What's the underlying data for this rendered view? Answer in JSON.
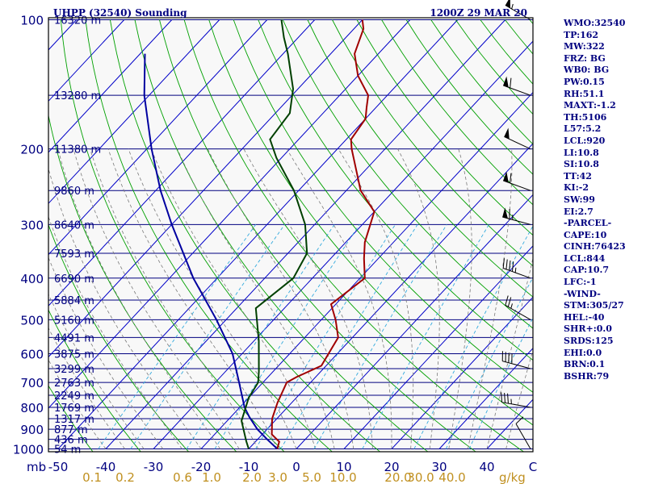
{
  "header": {
    "title": "UHPP (32540) Sounding",
    "time": "1200Z 29 MAR 20"
  },
  "colors": {
    "label_navy": "#000080",
    "isobar": "#00007f",
    "isotherm": "#0000c8",
    "dry_adiabat": "#00a000",
    "moist_adiabat": "#7a7a7a",
    "mixing_ratio": "#33aadd",
    "temperature": "#a00000",
    "dewpoint": "#004000",
    "parcel": "#0000a0",
    "tick_labels": "#c09020"
  },
  "stats": [
    {
      "label": "WMO:32540"
    },
    {
      "label": "TP:162"
    },
    {
      "label": "MW:322"
    },
    {
      "label": "FRZ: BG"
    },
    {
      "label": "WB0: BG"
    },
    {
      "label": "PW:0.15"
    },
    {
      "label": "RH:51.1"
    },
    {
      "label": "MAXT:-1.2"
    },
    {
      "label": "TH:5106"
    },
    {
      "label": "L57:5.2"
    },
    {
      "label": "LCL:920"
    },
    {
      "label": "LI:10.8"
    },
    {
      "label": "SI:10.8"
    },
    {
      "label": "TT:42"
    },
    {
      "label": "KI:-2"
    },
    {
      "label": "SW:99"
    },
    {
      "label": "EI:2.7"
    },
    {
      "label": "-PARCEL-"
    },
    {
      "label": "CAPE:10"
    },
    {
      "label": "CINH:76423"
    },
    {
      "label": "LCL:844"
    },
    {
      "label": "CAP:10.7"
    },
    {
      "label": "LFC:-1"
    },
    {
      "label": "-WIND-"
    },
    {
      "label": "STM:305/27"
    },
    {
      "label": "HEL:-40"
    },
    {
      "label": "SHR+:0.0"
    },
    {
      "label": "SRDS:125"
    },
    {
      "label": "EHI:0.0"
    },
    {
      "label": "BRN:0.1"
    },
    {
      "label": "BSHR:79"
    }
  ],
  "chart_data": {
    "type": "skew-t",
    "x_unit_label": "C",
    "y_unit_label": "mb",
    "pressure_levels": [
      100,
      200,
      300,
      400,
      500,
      600,
      700,
      800,
      900,
      1000
    ],
    "temperature_ticks": [
      -50,
      -40,
      -30,
      -20,
      -10,
      0,
      10,
      20,
      30,
      40
    ],
    "mixing_ratio_unit": "g/kg",
    "mixing_ratio_ticks": [
      "0.1",
      "0.2",
      "0.6",
      "1.0",
      "2.0",
      "3.0",
      "5.0",
      "10.0",
      "20.0",
      "30.0",
      "40.0"
    ],
    "height_labels": [
      {
        "p": 100,
        "h": "16320 m"
      },
      {
        "p": 150,
        "h": "13280 m"
      },
      {
        "p": 200,
        "h": "11380 m"
      },
      {
        "p": 250,
        "h": "9860 m"
      },
      {
        "p": 300,
        "h": "8640 m"
      },
      {
        "p": 350,
        "h": "7593 m"
      },
      {
        "p": 400,
        "h": "6690 m"
      },
      {
        "p": 450,
        "h": "5884 m"
      },
      {
        "p": 500,
        "h": "5160 m"
      },
      {
        "p": 550,
        "h": "4491 m"
      },
      {
        "p": 600,
        "h": "3875 m"
      },
      {
        "p": 650,
        "h": "3299 m"
      },
      {
        "p": 700,
        "h": "2763 m"
      },
      {
        "p": 750,
        "h": "2249 m"
      },
      {
        "p": 800,
        "h": "1769 m"
      },
      {
        "p": 850,
        "h": "1317 m"
      },
      {
        "p": 900,
        "h": "877 m"
      },
      {
        "p": 950,
        "h": "436 m"
      },
      {
        "p": 1000,
        "h": "54 m"
      }
    ],
    "temperature_profile": [
      {
        "p": 1000,
        "t": -4
      },
      {
        "p": 962,
        "t": -5
      },
      {
        "p": 925,
        "t": -8
      },
      {
        "p": 850,
        "t": -11
      },
      {
        "p": 780,
        "t": -13
      },
      {
        "p": 700,
        "t": -15
      },
      {
        "p": 680,
        "t": -14
      },
      {
        "p": 640,
        "t": -11
      },
      {
        "p": 550,
        "t": -13
      },
      {
        "p": 500,
        "t": -17
      },
      {
        "p": 460,
        "t": -21
      },
      {
        "p": 400,
        "t": -19
      },
      {
        "p": 360,
        "t": -23
      },
      {
        "p": 330,
        "t": -26
      },
      {
        "p": 280,
        "t": -30
      },
      {
        "p": 250,
        "t": -37
      },
      {
        "p": 200,
        "t": -47
      },
      {
        "p": 190,
        "t": -49
      },
      {
        "p": 170,
        "t": -50
      },
      {
        "p": 160,
        "t": -52
      },
      {
        "p": 150,
        "t": -54
      },
      {
        "p": 135,
        "t": -60
      },
      {
        "p": 120,
        "t": -65
      },
      {
        "p": 105,
        "t": -68
      },
      {
        "p": 100,
        "t": -70
      }
    ],
    "dewpoint_profile": [
      {
        "p": 1000,
        "t": -10
      },
      {
        "p": 960,
        "t": -12
      },
      {
        "p": 860,
        "t": -17
      },
      {
        "p": 760,
        "t": -20
      },
      {
        "p": 700,
        "t": -21
      },
      {
        "p": 660,
        "t": -23
      },
      {
        "p": 560,
        "t": -29
      },
      {
        "p": 470,
        "t": -36
      },
      {
        "p": 400,
        "t": -34
      },
      {
        "p": 350,
        "t": -36
      },
      {
        "p": 300,
        "t": -42
      },
      {
        "p": 250,
        "t": -51
      },
      {
        "p": 210,
        "t": -61
      },
      {
        "p": 190,
        "t": -66
      },
      {
        "p": 165,
        "t": -67
      },
      {
        "p": 145,
        "t": -71
      },
      {
        "p": 120,
        "t": -79
      },
      {
        "p": 110,
        "t": -83
      },
      {
        "p": 100,
        "t": -87
      }
    ],
    "parcel_profile": [
      {
        "p": 1000,
        "t": -4
      },
      {
        "p": 950,
        "t": -8
      },
      {
        "p": 900,
        "t": -12
      },
      {
        "p": 844,
        "t": -16
      },
      {
        "p": 800,
        "t": -19
      },
      {
        "p": 700,
        "t": -25
      },
      {
        "p": 600,
        "t": -32
      },
      {
        "p": 500,
        "t": -42
      },
      {
        "p": 400,
        "t": -55
      },
      {
        "p": 300,
        "t": -70
      },
      {
        "p": 250,
        "t": -79
      },
      {
        "p": 200,
        "t": -89
      },
      {
        "p": 150,
        "t": -101
      },
      {
        "p": 120,
        "t": -109
      }
    ],
    "wind_barbs": [
      {
        "p": 100,
        "dir": 300,
        "kt": 55
      },
      {
        "p": 150,
        "dir": 290,
        "kt": 60
      },
      {
        "p": 200,
        "dir": 295,
        "kt": 50
      },
      {
        "p": 250,
        "dir": 290,
        "kt": 60
      },
      {
        "p": 300,
        "dir": 285,
        "kt": 65
      },
      {
        "p": 400,
        "dir": 290,
        "kt": 45
      },
      {
        "p": 500,
        "dir": 300,
        "kt": 25
      },
      {
        "p": 650,
        "dir": 285,
        "kt": 40
      },
      {
        "p": 800,
        "dir": 280,
        "kt": 35
      },
      {
        "p": 1000,
        "dir": 330,
        "kt": 10
      }
    ]
  }
}
